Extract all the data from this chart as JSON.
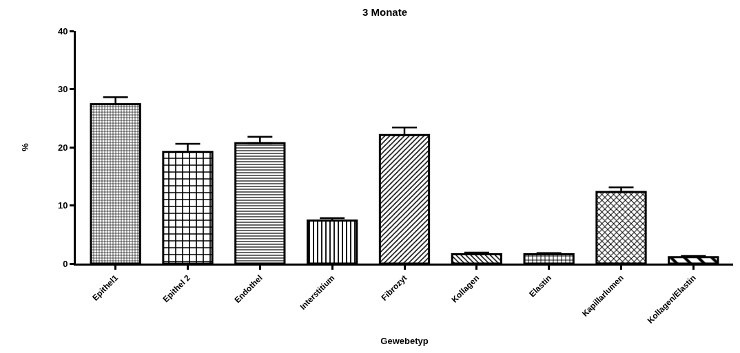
{
  "chart_data": {
    "type": "bar",
    "title": "3 Monate",
    "xlabel": "Gewebetyp",
    "ylabel": "%",
    "categories": [
      "Epithel1",
      "Epithel 2",
      "Endothel",
      "Interstitium",
      "Fibrozyt",
      "Kollagen",
      "Elastin",
      "Kapillarlumen",
      "Kollagen/Elastin"
    ],
    "values": [
      27.4,
      19.2,
      20.7,
      7.4,
      22.1,
      1.6,
      1.6,
      12.3,
      1.1
    ],
    "errors": [
      [
        27.4,
        28.6
      ],
      [
        19.2,
        20.6
      ],
      [
        20.7,
        21.8
      ],
      [
        7.4,
        7.8
      ],
      [
        22.1,
        23.4
      ],
      [
        1.6,
        1.9
      ],
      [
        1.6,
        1.8
      ],
      [
        12.3,
        13.1
      ],
      [
        1.1,
        1.3
      ]
    ],
    "color": "#000000",
    "ylim": [
      0,
      40
    ],
    "yticks": [
      0,
      10,
      20,
      30,
      40
    ],
    "grid": false
  }
}
